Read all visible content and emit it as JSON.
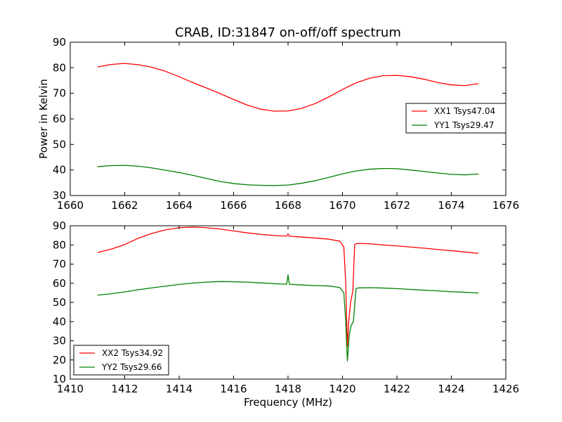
{
  "figure": {
    "title": "CRAB, ID:31847 on-off/off spectrum"
  },
  "colors": {
    "xx": "#ff0000",
    "yy": "#008000",
    "axes": "#000000",
    "background": "#ffffff"
  },
  "chart_data": [
    {
      "type": "line",
      "title": "CRAB, ID:31847 on-off/off spectrum",
      "xlabel": "",
      "ylabel": "Power in Kelvin",
      "xlim": [
        1660,
        1676
      ],
      "ylim": [
        30,
        90
      ],
      "xticks": [
        "1660",
        "1662",
        "1664",
        "1666",
        "1668",
        "1670",
        "1672",
        "1674",
        "1676"
      ],
      "yticks": [
        "30",
        "40",
        "50",
        "60",
        "70",
        "80",
        "90"
      ],
      "grid": false,
      "legend_position": "center-right",
      "series": [
        {
          "name": "XX1 Tsys47.04",
          "color": "#ff0000",
          "x": [
            1661.0,
            1661.5,
            1662.0,
            1662.5,
            1663.0,
            1663.5,
            1664.0,
            1664.5,
            1665.0,
            1665.5,
            1666.0,
            1666.5,
            1667.0,
            1667.5,
            1668.0,
            1668.5,
            1669.0,
            1669.5,
            1670.0,
            1670.5,
            1671.0,
            1671.5,
            1672.0,
            1672.5,
            1673.0,
            1673.5,
            1674.0,
            1674.5,
            1675.0
          ],
          "y": [
            80.3,
            81.3,
            81.7,
            81.2,
            80.2,
            78.6,
            76.5,
            74.2,
            72.1,
            69.9,
            67.6,
            65.4,
            63.8,
            63.0,
            63.1,
            64.1,
            66.0,
            68.6,
            71.5,
            74.1,
            75.9,
            76.9,
            77.0,
            76.5,
            75.5,
            74.2,
            73.3,
            73.0,
            73.8
          ]
        },
        {
          "name": "YY1 Tsys29.47",
          "color": "#008000",
          "x": [
            1661.0,
            1661.5,
            1662.0,
            1662.5,
            1663.0,
            1663.5,
            1664.0,
            1664.5,
            1665.0,
            1665.5,
            1666.0,
            1666.5,
            1667.0,
            1667.5,
            1668.0,
            1668.5,
            1669.0,
            1669.5,
            1670.0,
            1670.5,
            1671.0,
            1671.5,
            1672.0,
            1672.5,
            1673.0,
            1673.5,
            1674.0,
            1674.5,
            1675.0
          ],
          "y": [
            41.3,
            41.7,
            41.8,
            41.5,
            40.8,
            39.9,
            39.0,
            37.9,
            36.7,
            35.5,
            34.7,
            34.2,
            34.0,
            33.9,
            34.1,
            34.8,
            35.8,
            37.1,
            38.5,
            39.6,
            40.3,
            40.6,
            40.5,
            40.0,
            39.4,
            38.8,
            38.3,
            38.1,
            38.4
          ]
        }
      ]
    },
    {
      "type": "line",
      "title": "",
      "xlabel": "Frequency (MHz)",
      "ylabel": "",
      "xlim": [
        1410,
        1426
      ],
      "ylim": [
        10,
        90
      ],
      "xticks": [
        "1410",
        "1412",
        "1414",
        "1416",
        "1418",
        "1420",
        "1422",
        "1424",
        "1426"
      ],
      "yticks": [
        "10",
        "20",
        "30",
        "40",
        "50",
        "60",
        "70",
        "80",
        "90"
      ],
      "grid": false,
      "legend_position": "lower-left",
      "series": [
        {
          "name": "XX2 Tsys34.92",
          "color": "#ff0000",
          "x": [
            1411.0,
            1411.5,
            1412.0,
            1412.5,
            1413.0,
            1413.5,
            1414.0,
            1414.5,
            1415.0,
            1415.5,
            1416.0,
            1416.5,
            1417.0,
            1417.5,
            1417.95,
            1418.0,
            1418.05,
            1418.5,
            1419.0,
            1419.5,
            1419.9,
            1420.05,
            1420.12,
            1420.18,
            1420.24,
            1420.3,
            1420.38,
            1420.45,
            1420.55,
            1421.0,
            1421.5,
            1422.0,
            1422.5,
            1423.0,
            1423.5,
            1424.0,
            1424.5,
            1425.0
          ],
          "y": [
            76.0,
            77.8,
            80.2,
            83.5,
            86.0,
            87.9,
            89.0,
            89.3,
            89.0,
            88.3,
            87.3,
            86.3,
            85.5,
            84.9,
            84.6,
            85.8,
            84.6,
            84.1,
            83.6,
            83.0,
            82.0,
            79.0,
            60.0,
            27.0,
            42.0,
            50.0,
            56.0,
            80.3,
            80.8,
            80.6,
            80.0,
            79.5,
            78.9,
            78.3,
            77.6,
            77.0,
            76.3,
            75.6
          ]
        },
        {
          "name": "YY2 Tsys29.66",
          "color": "#008000",
          "x": [
            1411.0,
            1411.5,
            1412.0,
            1412.5,
            1413.0,
            1413.5,
            1414.0,
            1414.5,
            1415.0,
            1415.5,
            1416.0,
            1416.5,
            1417.0,
            1417.5,
            1417.95,
            1418.0,
            1418.05,
            1418.5,
            1419.0,
            1419.5,
            1419.9,
            1420.05,
            1420.12,
            1420.18,
            1420.25,
            1420.32,
            1420.4,
            1420.5,
            1420.6,
            1421.0,
            1421.5,
            1422.0,
            1422.5,
            1423.0,
            1423.5,
            1424.0,
            1424.5,
            1425.0
          ],
          "y": [
            53.8,
            54.5,
            55.5,
            56.6,
            57.6,
            58.5,
            59.4,
            60.1,
            60.6,
            60.9,
            60.8,
            60.6,
            60.2,
            59.8,
            59.5,
            64.3,
            59.5,
            59.1,
            58.8,
            58.6,
            57.8,
            55.0,
            40.0,
            19.5,
            33.0,
            38.0,
            40.0,
            57.3,
            57.6,
            57.7,
            57.5,
            57.2,
            56.8,
            56.4,
            56.0,
            55.6,
            55.3,
            54.9
          ]
        }
      ]
    }
  ]
}
